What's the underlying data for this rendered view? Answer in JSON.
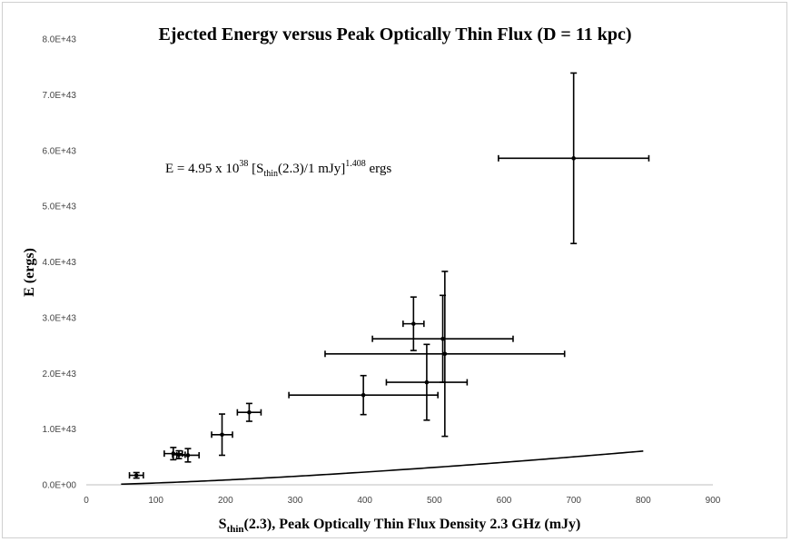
{
  "chart_data": {
    "type": "scatter",
    "title": "Ejected Energy versus Peak Optically Thin Flux (D = 11 kpc)",
    "xlabel": {
      "main": "S",
      "sub": "thin",
      "rest": "(2.3), Peak Optically Thin Flux Density 2.3 GHz (mJy)"
    },
    "ylabel": "E (ergs)",
    "xlim": [
      0,
      900
    ],
    "ylim": [
      0,
      8e+43
    ],
    "x_ticks": [
      0,
      100,
      200,
      300,
      400,
      500,
      600,
      700,
      800,
      900
    ],
    "y_ticks": [
      0,
      1e+43,
      2e+43,
      3e+43,
      4e+43,
      5e+43,
      6e+43,
      7e+43,
      8e+43
    ],
    "y_tick_labels": [
      "0.0E+00",
      "1.0E+43",
      "2.0E+43",
      "3.0E+43",
      "4.0E+43",
      "5.0E+43",
      "6.0E+43",
      "7.0E+43",
      "8.0E+43"
    ],
    "grid": false,
    "points": [
      {
        "x": 72,
        "y": 1.7e+42,
        "xerr": 10,
        "yerr": 5e+41
      },
      {
        "x": 125,
        "y": 5.6e+42,
        "xerr": 13,
        "yerr": 1.1e+42
      },
      {
        "x": 133,
        "y": 5.4e+42,
        "xerr": 9,
        "yerr": 7e+41
      },
      {
        "x": 146,
        "y": 5.3e+42,
        "xerr": 16,
        "yerr": 1.2e+42
      },
      {
        "x": 195,
        "y": 9e+42,
        "xerr": 15,
        "yerr": 3.7e+42
      },
      {
        "x": 234,
        "y": 1.3e+43,
        "xerr": 17,
        "yerr": 1.6e+42
      },
      {
        "x": 398,
        "y": 1.61e+43,
        "xerr": 107,
        "yerr": 3.5e+42
      },
      {
        "x": 470,
        "y": 2.89e+43,
        "xerr": 15,
        "yerr": 4.8e+42
      },
      {
        "x": 489,
        "y": 1.84e+43,
        "xerr": 58,
        "yerr": 6.8e+42
      },
      {
        "x": 512,
        "y": 2.62e+43,
        "xerr": 101,
        "yerr": 7.8e+42
      },
      {
        "x": 515,
        "y": 2.35e+43,
        "xerr": 172,
        "yerr": 1.48e+43
      },
      {
        "x": 700,
        "y": 5.86e+43,
        "xerr": 108,
        "yerr": 1.53e+43
      }
    ],
    "fit": {
      "coef": 4.95e+38,
      "exponent": 1.408,
      "x_range": [
        50,
        800
      ],
      "label_parts": {
        "prefix": "E =  4.95 x 10",
        "exp10": "38",
        "mid1": " [S",
        "sub": "thin",
        "mid2": "(2.3)/1 mJy]",
        "power": "1.408",
        "suffix": " ergs"
      }
    },
    "colors": {
      "marker": "#000000",
      "line": "#000000",
      "axis": "#bfbfbf",
      "frame": "#d0d0d0"
    }
  }
}
